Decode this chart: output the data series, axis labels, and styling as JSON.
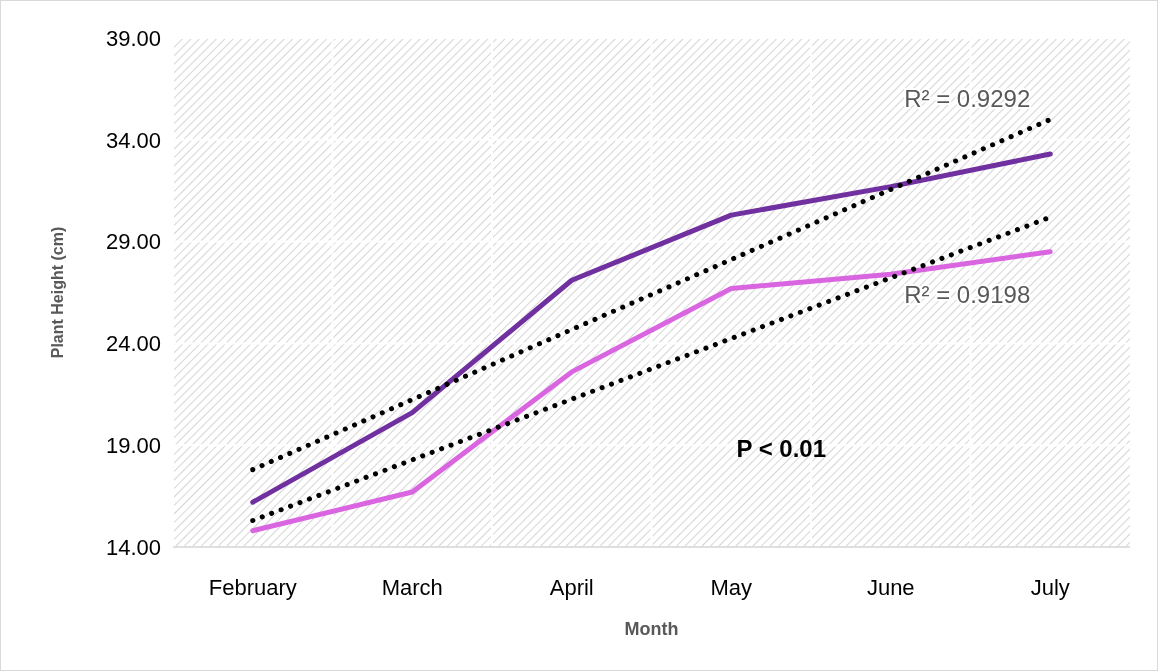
{
  "chart_data": {
    "type": "line",
    "xlabel": "Month",
    "ylabel": "Plant Height (cm)",
    "categories": [
      "February",
      "March",
      "April",
      "May",
      "June",
      "July"
    ],
    "ylim": [
      14,
      39
    ],
    "yticks": [
      {
        "value": 14,
        "label": "14.00"
      },
      {
        "value": 19,
        "label": "19.00"
      },
      {
        "value": 24,
        "label": "24.00"
      },
      {
        "value": 29,
        "label": "29.00"
      },
      {
        "value": 34,
        "label": "34.00"
      },
      {
        "value": 39,
        "label": "39.00"
      }
    ],
    "grid": true,
    "marker": "none",
    "series": [
      {
        "color": "#7030a0",
        "values": [
          16.2,
          20.6,
          27.1,
          30.3,
          31.7,
          33.3
        ]
      },
      {
        "color": "#d966e0",
        "values": [
          14.8,
          16.7,
          22.6,
          26.7,
          27.4,
          28.5
        ]
      },
      {
        "type": "line",
        "color": "#000000",
        "line_style": "dotted",
        "x": [
          "February",
          "July"
        ],
        "values": [
          17.8,
          35.0
        ]
      },
      {
        "type": "line",
        "color": "#000000",
        "line_style": "dotted",
        "x": [
          "February",
          "July"
        ],
        "values": [
          15.3,
          30.2
        ]
      }
    ],
    "annotations": [
      {
        "text": "R² = 0.9292",
        "x": "July",
        "y": 35.0
      },
      {
        "text": "R² = 0.9198",
        "x": "July",
        "y": 30.2
      },
      "P < 0.01"
    ]
  }
}
